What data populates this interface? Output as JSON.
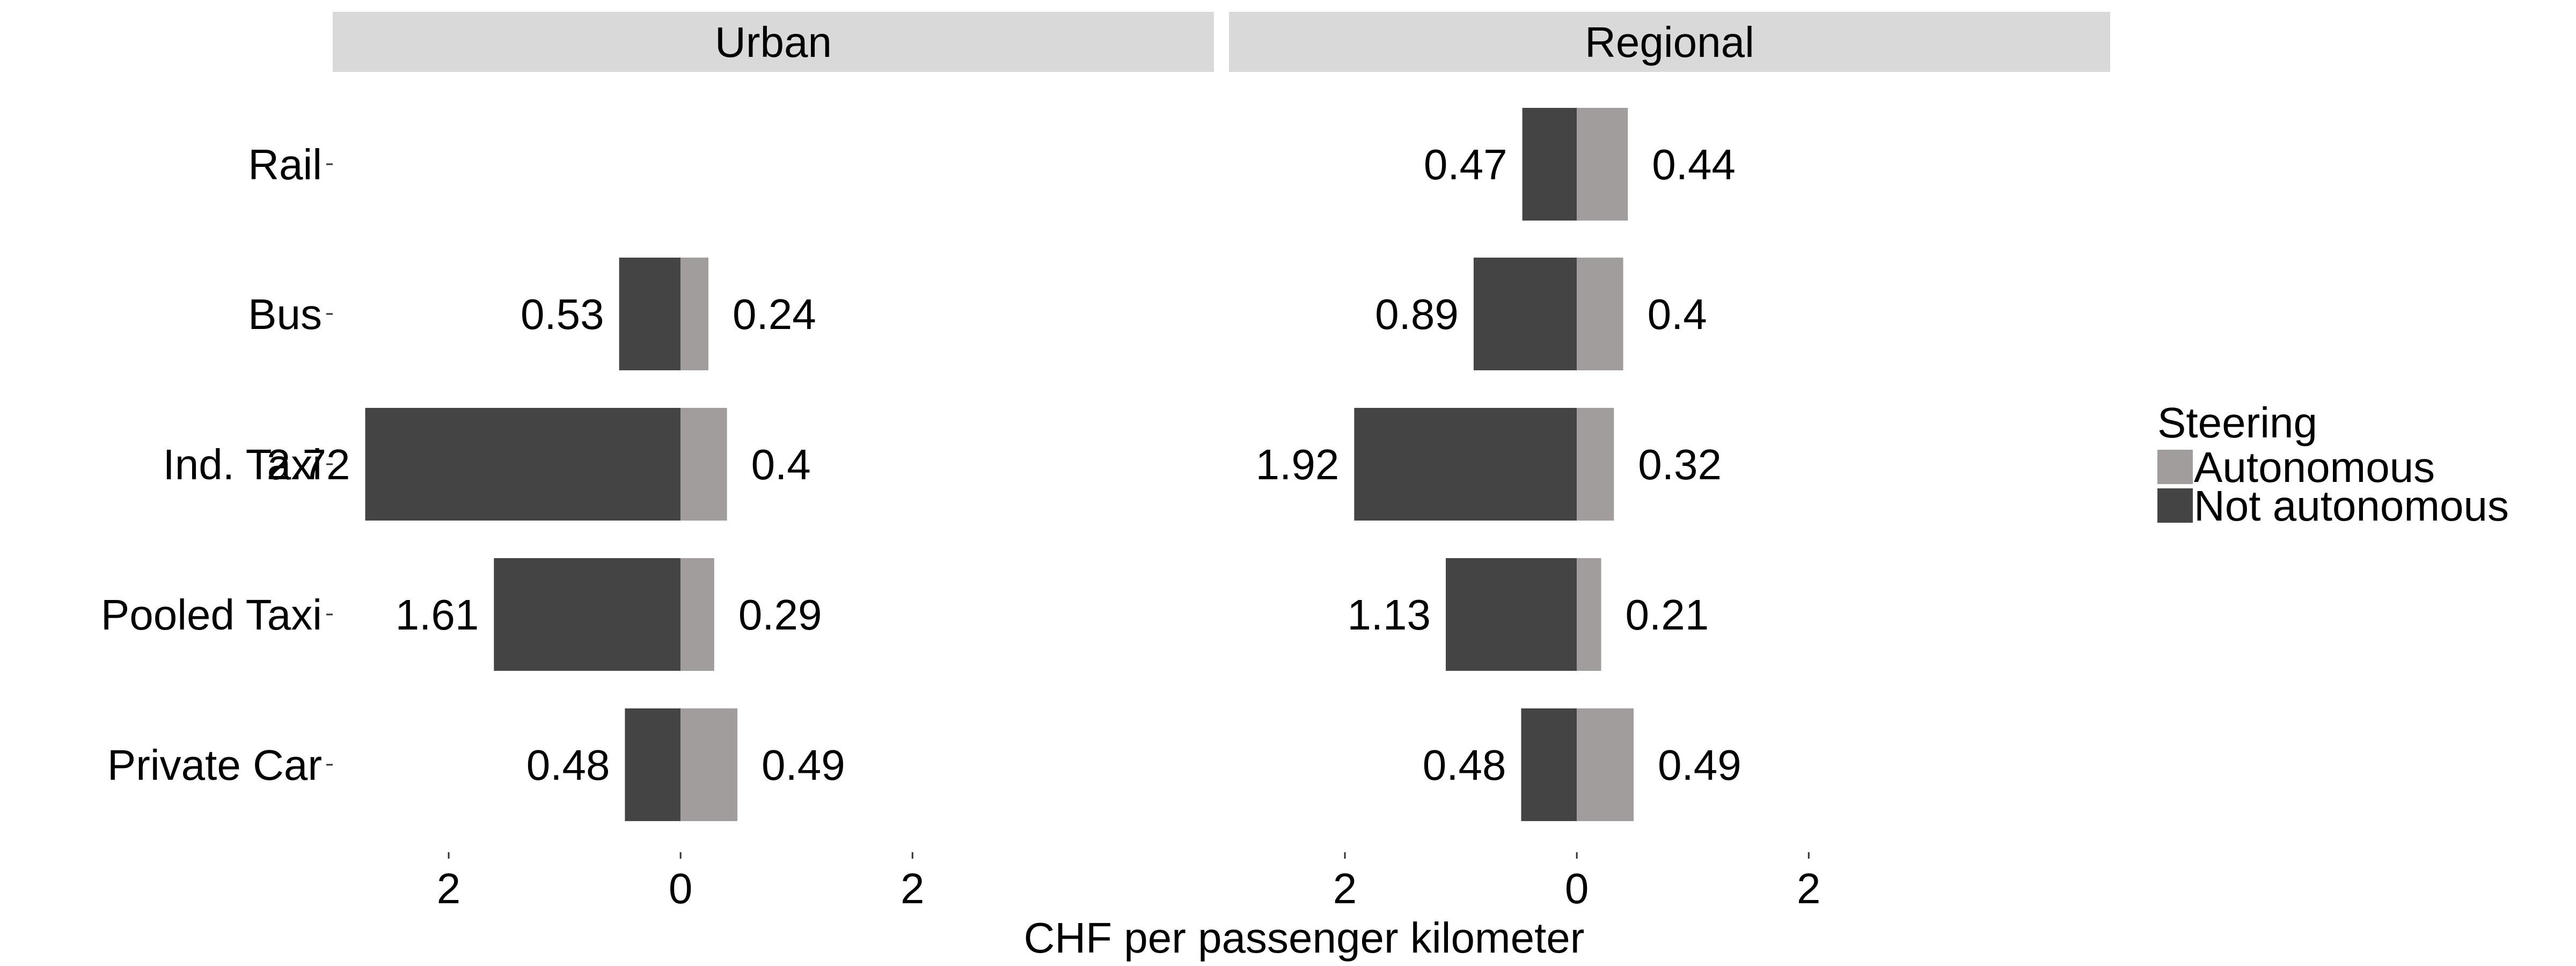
{
  "chart_data": {
    "type": "bar",
    "orientation": "horizontal-diverging",
    "xlabel": "CHF per passenger kilometer",
    "ylabel": "",
    "xlim": [
      -3,
      4.6
    ],
    "x_ticks": [
      -2,
      0,
      2
    ],
    "x_tick_labels": [
      "2",
      "0",
      "2"
    ],
    "grid": false,
    "facets": [
      "Urban",
      "Regional"
    ],
    "categories": [
      "Rail",
      "Bus",
      "Ind. Taxi",
      "Pooled Taxi",
      "Private Car"
    ],
    "legend": {
      "title": "Steering",
      "position": "right",
      "entries": [
        "Autonomous",
        "Not autonomous"
      ]
    },
    "colors": {
      "Autonomous": "#a09d9c",
      "Not autonomous": "#444444",
      "strip": "#d9d9d9"
    },
    "series": [
      {
        "name": "Not autonomous",
        "direction": "left",
        "facets": {
          "Urban": [
            null,
            0.53,
            2.72,
            1.61,
            0.48
          ],
          "Regional": [
            0.47,
            0.89,
            1.92,
            1.13,
            0.48
          ]
        },
        "labels": {
          "Urban": [
            "",
            "0.53",
            "2.72",
            "1.61",
            "0.48"
          ],
          "Regional": [
            "0.47",
            "0.89",
            "1.92",
            "1.13",
            "0.48"
          ]
        }
      },
      {
        "name": "Autonomous",
        "direction": "right",
        "facets": {
          "Urban": [
            null,
            0.24,
            0.4,
            0.29,
            0.49
          ],
          "Regional": [
            0.44,
            0.4,
            0.32,
            0.21,
            0.49
          ]
        },
        "labels": {
          "Urban": [
            "",
            "0.24",
            "0.4",
            "0.29",
            "0.49"
          ],
          "Regional": [
            "0.44",
            "0.4",
            "0.32",
            "0.21",
            "0.49"
          ]
        }
      }
    ]
  }
}
